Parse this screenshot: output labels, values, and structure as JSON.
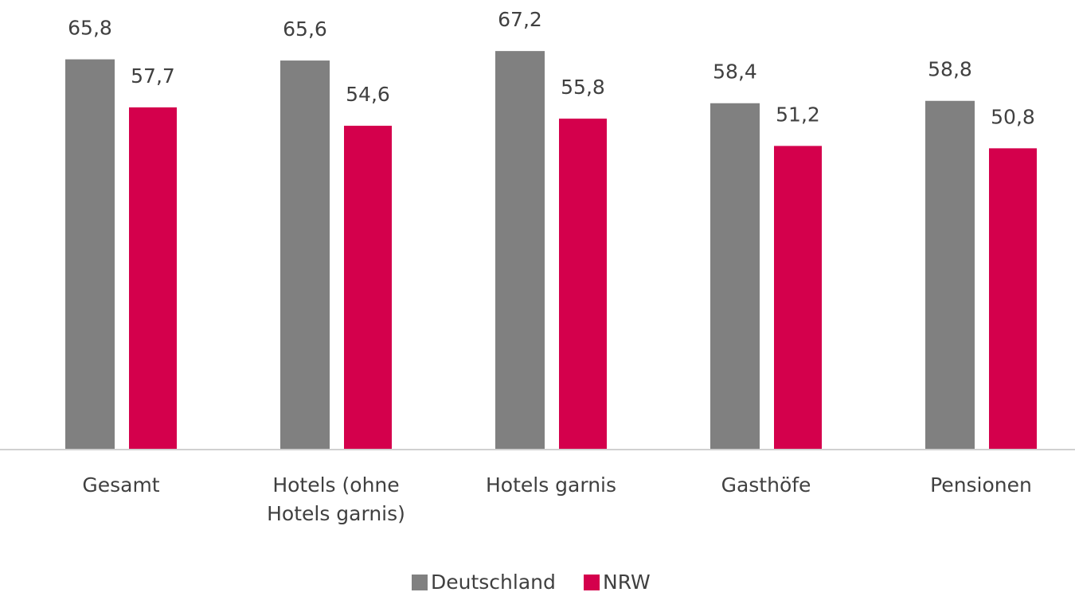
{
  "chart_data": {
    "type": "bar",
    "categories": [
      "Gesamt",
      "Hotels (ohne Hotels garnis)",
      "Hotels garnis",
      "Gasthöfe",
      "Pensionen"
    ],
    "series": [
      {
        "name": "Deutschland",
        "color": "#808080",
        "values": [
          65.8,
          65.6,
          67.2,
          58.4,
          58.8
        ],
        "value_labels": [
          "65,8",
          "65,6",
          "67,2",
          "58,4",
          "58,8"
        ]
      },
      {
        "name": "NRW",
        "color": "#d4004c",
        "values": [
          57.7,
          54.6,
          55.8,
          51.2,
          50.8
        ],
        "value_labels": [
          "57,7",
          "54,6",
          "55,8",
          "51,2",
          "50,8"
        ]
      }
    ],
    "ylim": [
      0,
      75
    ],
    "legend": "bottom"
  }
}
